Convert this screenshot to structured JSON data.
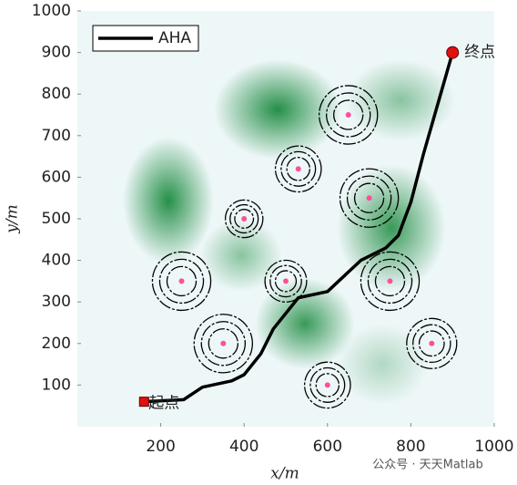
{
  "chart_data": {
    "type": "line",
    "xlabel": "x/m",
    "ylabel": "y/m",
    "xlim": [
      0,
      1000
    ],
    "ylim": [
      0,
      1000
    ],
    "xticks": [
      200,
      400,
      600,
      800,
      1000
    ],
    "yticks": [
      100,
      200,
      300,
      400,
      500,
      600,
      700,
      800,
      900,
      1000
    ],
    "legend": "upper left",
    "series": [
      {
        "name": "AHA",
        "color": "#000000",
        "x": [
          160,
          255,
          300,
          370,
          400,
          440,
          470,
          530,
          600,
          680,
          740,
          770,
          800,
          830,
          900
        ],
        "values": [
          60,
          65,
          95,
          110,
          125,
          175,
          235,
          310,
          325,
          400,
          430,
          460,
          540,
          655,
          900
        ]
      }
    ],
    "threats": [
      {
        "x": 650,
        "y": 750,
        "r": 70
      },
      {
        "x": 530,
        "y": 620,
        "r": 55
      },
      {
        "x": 700,
        "y": 550,
        "r": 70
      },
      {
        "x": 400,
        "y": 500,
        "r": 45
      },
      {
        "x": 250,
        "y": 350,
        "r": 70
      },
      {
        "x": 500,
        "y": 350,
        "r": 50
      },
      {
        "x": 750,
        "y": 350,
        "r": 70
      },
      {
        "x": 350,
        "y": 200,
        "r": 70
      },
      {
        "x": 850,
        "y": 200,
        "r": 60
      },
      {
        "x": 600,
        "y": 100,
        "r": 55
      }
    ],
    "annotations": [
      {
        "text": "起点",
        "x": 160,
        "y": 60
      },
      {
        "text": "终点",
        "x": 900,
        "y": 900
      }
    ],
    "watermark": "公众号 · 天天Matlab"
  }
}
